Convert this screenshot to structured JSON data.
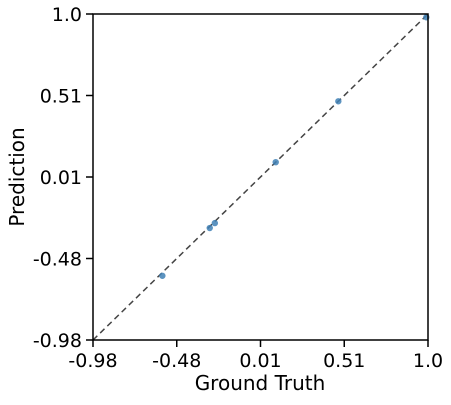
{
  "chart_data": {
    "type": "scatter",
    "title": "",
    "xlabel": "Ground Truth",
    "ylabel": "Prediction",
    "xlim": [
      -0.98,
      1.0
    ],
    "ylim": [
      -0.98,
      1.0
    ],
    "xticks": [
      "-0.98",
      "-0.48",
      "0.01",
      "0.51",
      "1.0"
    ],
    "yticks": [
      "-0.98",
      "-0.48",
      "0.01",
      "0.51",
      "1.0"
    ],
    "grid": false,
    "reference_line": {
      "from": [
        -0.98,
        -0.98
      ],
      "to": [
        1.0,
        1.0
      ],
      "style": "dashed",
      "color": "#444444"
    },
    "point_color": "#3f80b5",
    "points": [
      {
        "x": -0.57,
        "y": -0.59
      },
      {
        "x": -0.29,
        "y": -0.3
      },
      {
        "x": -0.26,
        "y": -0.27
      },
      {
        "x": 0.1,
        "y": 0.1
      },
      {
        "x": 0.47,
        "y": 0.47
      },
      {
        "x": 0.99,
        "y": 0.98
      }
    ]
  }
}
